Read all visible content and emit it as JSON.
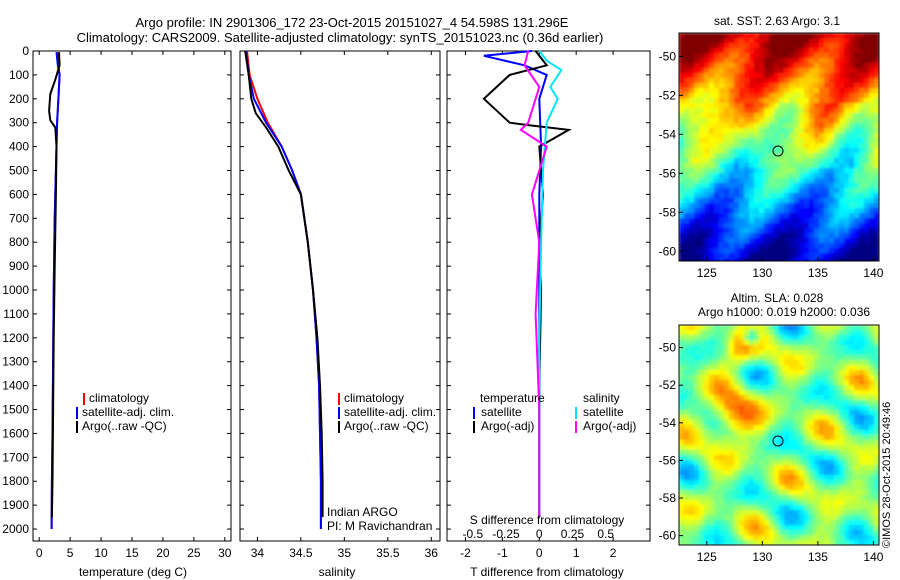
{
  "header": {
    "line1": "Argo profile: IN 2901306_172 23-Oct-2015 20151027_4 54.598S 131.296E",
    "line2": "Climatology: CARS2009. Satellite-adjusted climatology: synTS_20151023.nc (0.36d earlier)"
  },
  "colors": {
    "climatology": "#ff0000",
    "satellite": "#0000ff",
    "argo": "#000000",
    "sal_satellite": "#00e5ff",
    "sal_argo": "#ff00ff"
  },
  "chart_data": [
    {
      "type": "line",
      "id": "temp",
      "xlabel": "temperature (deg C)",
      "ylabel": "",
      "xlim": [
        -1,
        31
      ],
      "ylim": [
        2050,
        0
      ],
      "xticks": [
        0,
        5,
        10,
        15,
        20,
        25,
        30
      ],
      "yticks": [
        0,
        100,
        200,
        300,
        400,
        500,
        600,
        700,
        800,
        900,
        1000,
        1100,
        1200,
        1300,
        1400,
        1500,
        1600,
        1700,
        1800,
        1900,
        2000
      ],
      "legend": [
        "climatology",
        "satellite-adj. clim.",
        "Argo(..raw -QC)"
      ],
      "series": [
        {
          "name": "climatology",
          "color": "#ff0000",
          "x": [
            3.0,
            3.1,
            3.3,
            3.1,
            2.9,
            2.7,
            2.5,
            2.35,
            2.25,
            2.15,
            2.05,
            2.0
          ],
          "y": [
            5,
            60,
            100,
            200,
            300,
            500,
            700,
            1000,
            1300,
            1600,
            1800,
            2000
          ]
        },
        {
          "name": "satellite-adj. clim.",
          "color": "#0000ff",
          "x": [
            2.8,
            3.0,
            3.3,
            3.1,
            2.9,
            2.7,
            2.5,
            2.35,
            2.25,
            2.15,
            2.05,
            2.0
          ],
          "y": [
            5,
            60,
            100,
            200,
            300,
            500,
            700,
            1000,
            1300,
            1600,
            1800,
            2000
          ]
        },
        {
          "name": "Argo(..raw -QC)",
          "color": "#000000",
          "x": [
            3.2,
            3.3,
            2.6,
            1.8,
            1.6,
            1.8,
            2.6,
            2.8,
            2.7,
            2.5,
            2.35,
            2.25,
            2.15,
            2.05
          ],
          "y": [
            5,
            60,
            120,
            180,
            250,
            290,
            320,
            400,
            600,
            900,
            1200,
            1500,
            1800,
            1950
          ]
        }
      ]
    },
    {
      "type": "line",
      "id": "sal",
      "xlabel": "salinity",
      "ylabel": "",
      "xlim": [
        33.8,
        36.1
      ],
      "ylim": [
        2050,
        0
      ],
      "xticks": [
        34,
        34.5,
        35,
        35.5,
        36
      ],
      "legend": [
        "climatology",
        "satellite-adj. clim.",
        "Argo(..raw -QC)"
      ],
      "annotations": [
        "Indian ARGO",
        "PI: M Ravichandran"
      ],
      "series": [
        {
          "name": "climatology",
          "color": "#ff0000",
          "x": [
            33.88,
            33.91,
            34.0,
            34.12,
            34.28,
            34.4,
            34.5,
            34.58,
            34.64,
            34.68,
            34.71,
            34.72,
            34.73,
            34.73
          ],
          "y": [
            0,
            100,
            200,
            300,
            400,
            500,
            600,
            800,
            1000,
            1200,
            1400,
            1600,
            1800,
            2000
          ]
        },
        {
          "name": "satellite-adj. clim.",
          "color": "#0000ff",
          "x": [
            33.87,
            33.9,
            33.96,
            34.1,
            34.28,
            34.4,
            34.5,
            34.58,
            34.64,
            34.68,
            34.71,
            34.72,
            34.73,
            34.73
          ],
          "y": [
            0,
            100,
            200,
            300,
            400,
            500,
            600,
            800,
            1000,
            1200,
            1400,
            1600,
            1800,
            2000
          ]
        },
        {
          "name": "Argo(..raw -QC)",
          "color": "#000000",
          "x": [
            33.86,
            33.9,
            33.93,
            33.98,
            34.1,
            34.24,
            34.36,
            34.5,
            34.58,
            34.64,
            34.69,
            34.72,
            34.74,
            34.75,
            34.75
          ],
          "y": [
            0,
            100,
            200,
            260,
            320,
            400,
            500,
            600,
            800,
            1000,
            1200,
            1400,
            1600,
            1800,
            1950
          ]
        }
      ]
    },
    {
      "type": "line",
      "id": "diff",
      "xlabel": "T difference from climatology",
      "x2label": "S difference from climatology",
      "xlim": [
        -2.5,
        3
      ],
      "ylim": [
        2050,
        0
      ],
      "xticks": [
        -2,
        -1,
        0,
        1,
        2
      ],
      "x2ticks": [
        "-0.5",
        "-0.25",
        "0",
        "0.25",
        "0.5"
      ],
      "legend_title": [
        "temperature",
        "salinity"
      ],
      "legend": [
        "satellite",
        "Argo(-adj)",
        "satellite",
        "Argo(-adj)"
      ],
      "series": [
        {
          "name": "satellite",
          "color": "#0000ff",
          "x": [
            -0.2,
            -1.5,
            -0.4,
            0.2,
            0.0,
            0.05,
            0.0,
            0.0,
            0.0,
            0.0,
            0.0
          ],
          "y": [
            0,
            20,
            60,
            100,
            200,
            400,
            600,
            900,
            1200,
            1600,
            1950
          ]
        },
        {
          "name": "Argo(-adj)",
          "color": "#000000",
          "x": [
            -0.1,
            0.2,
            -0.8,
            -1.5,
            -0.8,
            -0.3,
            0.8,
            0.0,
            0.1,
            0.0,
            0.05,
            0.0,
            0.0
          ],
          "y": [
            0,
            60,
            100,
            200,
            300,
            310,
            330,
            400,
            600,
            800,
            1000,
            1400,
            1950
          ]
        },
        {
          "name": "satellite",
          "color": "#00e5ff",
          "x": [
            0.0,
            0.2,
            0.6,
            0.3,
            0.5,
            0.2,
            0.1,
            0.05,
            0.0,
            0.0
          ],
          "y": [
            0,
            40,
            80,
            150,
            200,
            300,
            500,
            800,
            1200,
            1950
          ]
        },
        {
          "name": "Argo(-adj)",
          "color": "#ff00ff",
          "x": [
            -0.3,
            -0.4,
            0.0,
            -0.3,
            -0.5,
            0.2,
            -0.2,
            0.0,
            -0.1,
            0.0,
            0.0
          ],
          "y": [
            0,
            60,
            150,
            300,
            330,
            400,
            600,
            800,
            1100,
            1500,
            1950
          ]
        }
      ]
    },
    {
      "type": "heatmap",
      "id": "sst",
      "title": "sat. SST: 2.63  Argo: 3.1",
      "xlim": [
        122.5,
        140.5
      ],
      "ylim": [
        -60.5,
        -48.8
      ],
      "xticks": [
        125,
        130,
        135,
        140
      ],
      "yticks": [
        -50,
        -52,
        -54,
        -56,
        -58,
        -60
      ],
      "marker": {
        "lon": 131.3,
        "lat": -54.6
      }
    },
    {
      "type": "heatmap",
      "id": "sla",
      "title": [
        "Altim. SLA: 0.028",
        "Argo h1000: 0.019 h2000: 0.036"
      ],
      "xlim": [
        122.5,
        140.5
      ],
      "ylim": [
        -60.5,
        -48.8
      ],
      "xticks": [
        125,
        130,
        135,
        140
      ],
      "yticks": [
        -50,
        -52,
        -54,
        -56,
        -58,
        -60
      ],
      "marker": {
        "lon": 131.3,
        "lat": -54.6
      }
    }
  ],
  "credit": "©IMOS 28-Oct-2015 20:49:46"
}
